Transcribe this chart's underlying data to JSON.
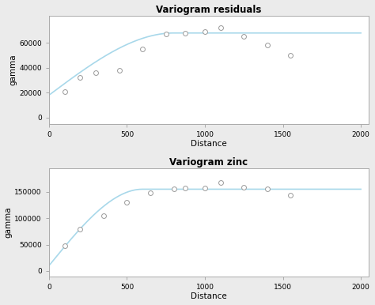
{
  "plot1": {
    "title": "Variogram residuals",
    "xlabel": "Distance",
    "ylabel": "gamma",
    "points_x": [
      100,
      200,
      300,
      450,
      600,
      750,
      875,
      1000,
      1100,
      1250,
      1400,
      1550
    ],
    "points_y": [
      21000,
      32000,
      36000,
      38000,
      55000,
      67000,
      68000,
      69000,
      72000,
      65000,
      58000,
      50000
    ],
    "curve_sill": 68000,
    "curve_nugget": 18000,
    "curve_range": 800,
    "ylim": [
      -5000,
      82000
    ],
    "xlim": [
      0,
      2050
    ],
    "yticks": [
      0,
      20000,
      40000,
      60000
    ],
    "xticks": [
      0,
      500,
      1000,
      1500,
      2000
    ]
  },
  "plot2": {
    "title": "Variogram zinc",
    "xlabel": "Distance",
    "ylabel": "gamma",
    "points_x": [
      100,
      200,
      350,
      500,
      650,
      800,
      875,
      1000,
      1100,
      1250,
      1400,
      1550
    ],
    "points_y": [
      48000,
      80000,
      105000,
      130000,
      148000,
      156000,
      157000,
      157000,
      168000,
      158000,
      155000,
      143000
    ],
    "curve_sill": 155000,
    "curve_nugget": 10000,
    "curve_range": 600,
    "ylim": [
      -10000,
      195000
    ],
    "xlim": [
      0,
      2050
    ],
    "yticks": [
      0,
      50000,
      100000,
      150000
    ],
    "xticks": [
      0,
      500,
      1000,
      1500,
      2000
    ]
  },
  "line_color": "#a8d8ea",
  "point_facecolor": "white",
  "point_edgecolor": "#999999",
  "fig_facecolor": "#ebebeb",
  "axes_facecolor": "#ffffff",
  "spine_color": "#aaaaaa"
}
